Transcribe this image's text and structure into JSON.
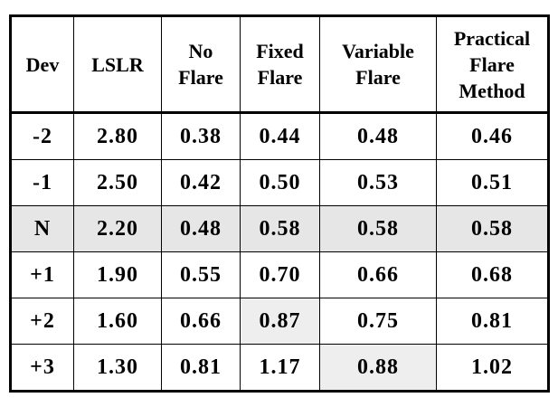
{
  "table": {
    "headers": [
      [
        "Dev"
      ],
      [
        "LSLR"
      ],
      [
        "No",
        "Flare"
      ],
      [
        "Fixed",
        "Flare"
      ],
      [
        "Variable",
        "Flare"
      ],
      [
        "Practical",
        "Flare",
        "Method"
      ]
    ],
    "rows": [
      [
        "-2",
        "2.80",
        "0.38",
        "0.44",
        "0.48",
        "0.46"
      ],
      [
        "-1",
        "2.50",
        "0.42",
        "0.50",
        "0.53",
        "0.51"
      ],
      [
        "N",
        "2.20",
        "0.48",
        "0.58",
        "0.58",
        "0.58"
      ],
      [
        "+1",
        "1.90",
        "0.55",
        "0.70",
        "0.66",
        "0.68"
      ],
      [
        "+2",
        "1.60",
        "0.66",
        "0.87",
        "0.75",
        "0.81"
      ],
      [
        "+3",
        "1.30",
        "0.81",
        "1.17",
        "0.88",
        "1.02"
      ]
    ],
    "shaded_row_index": 2,
    "shaded_cells": [
      [
        4,
        3
      ],
      [
        5,
        4
      ]
    ],
    "shade_color_row": "#e6e6e6",
    "shade_color_cell": "#eeeeee"
  }
}
